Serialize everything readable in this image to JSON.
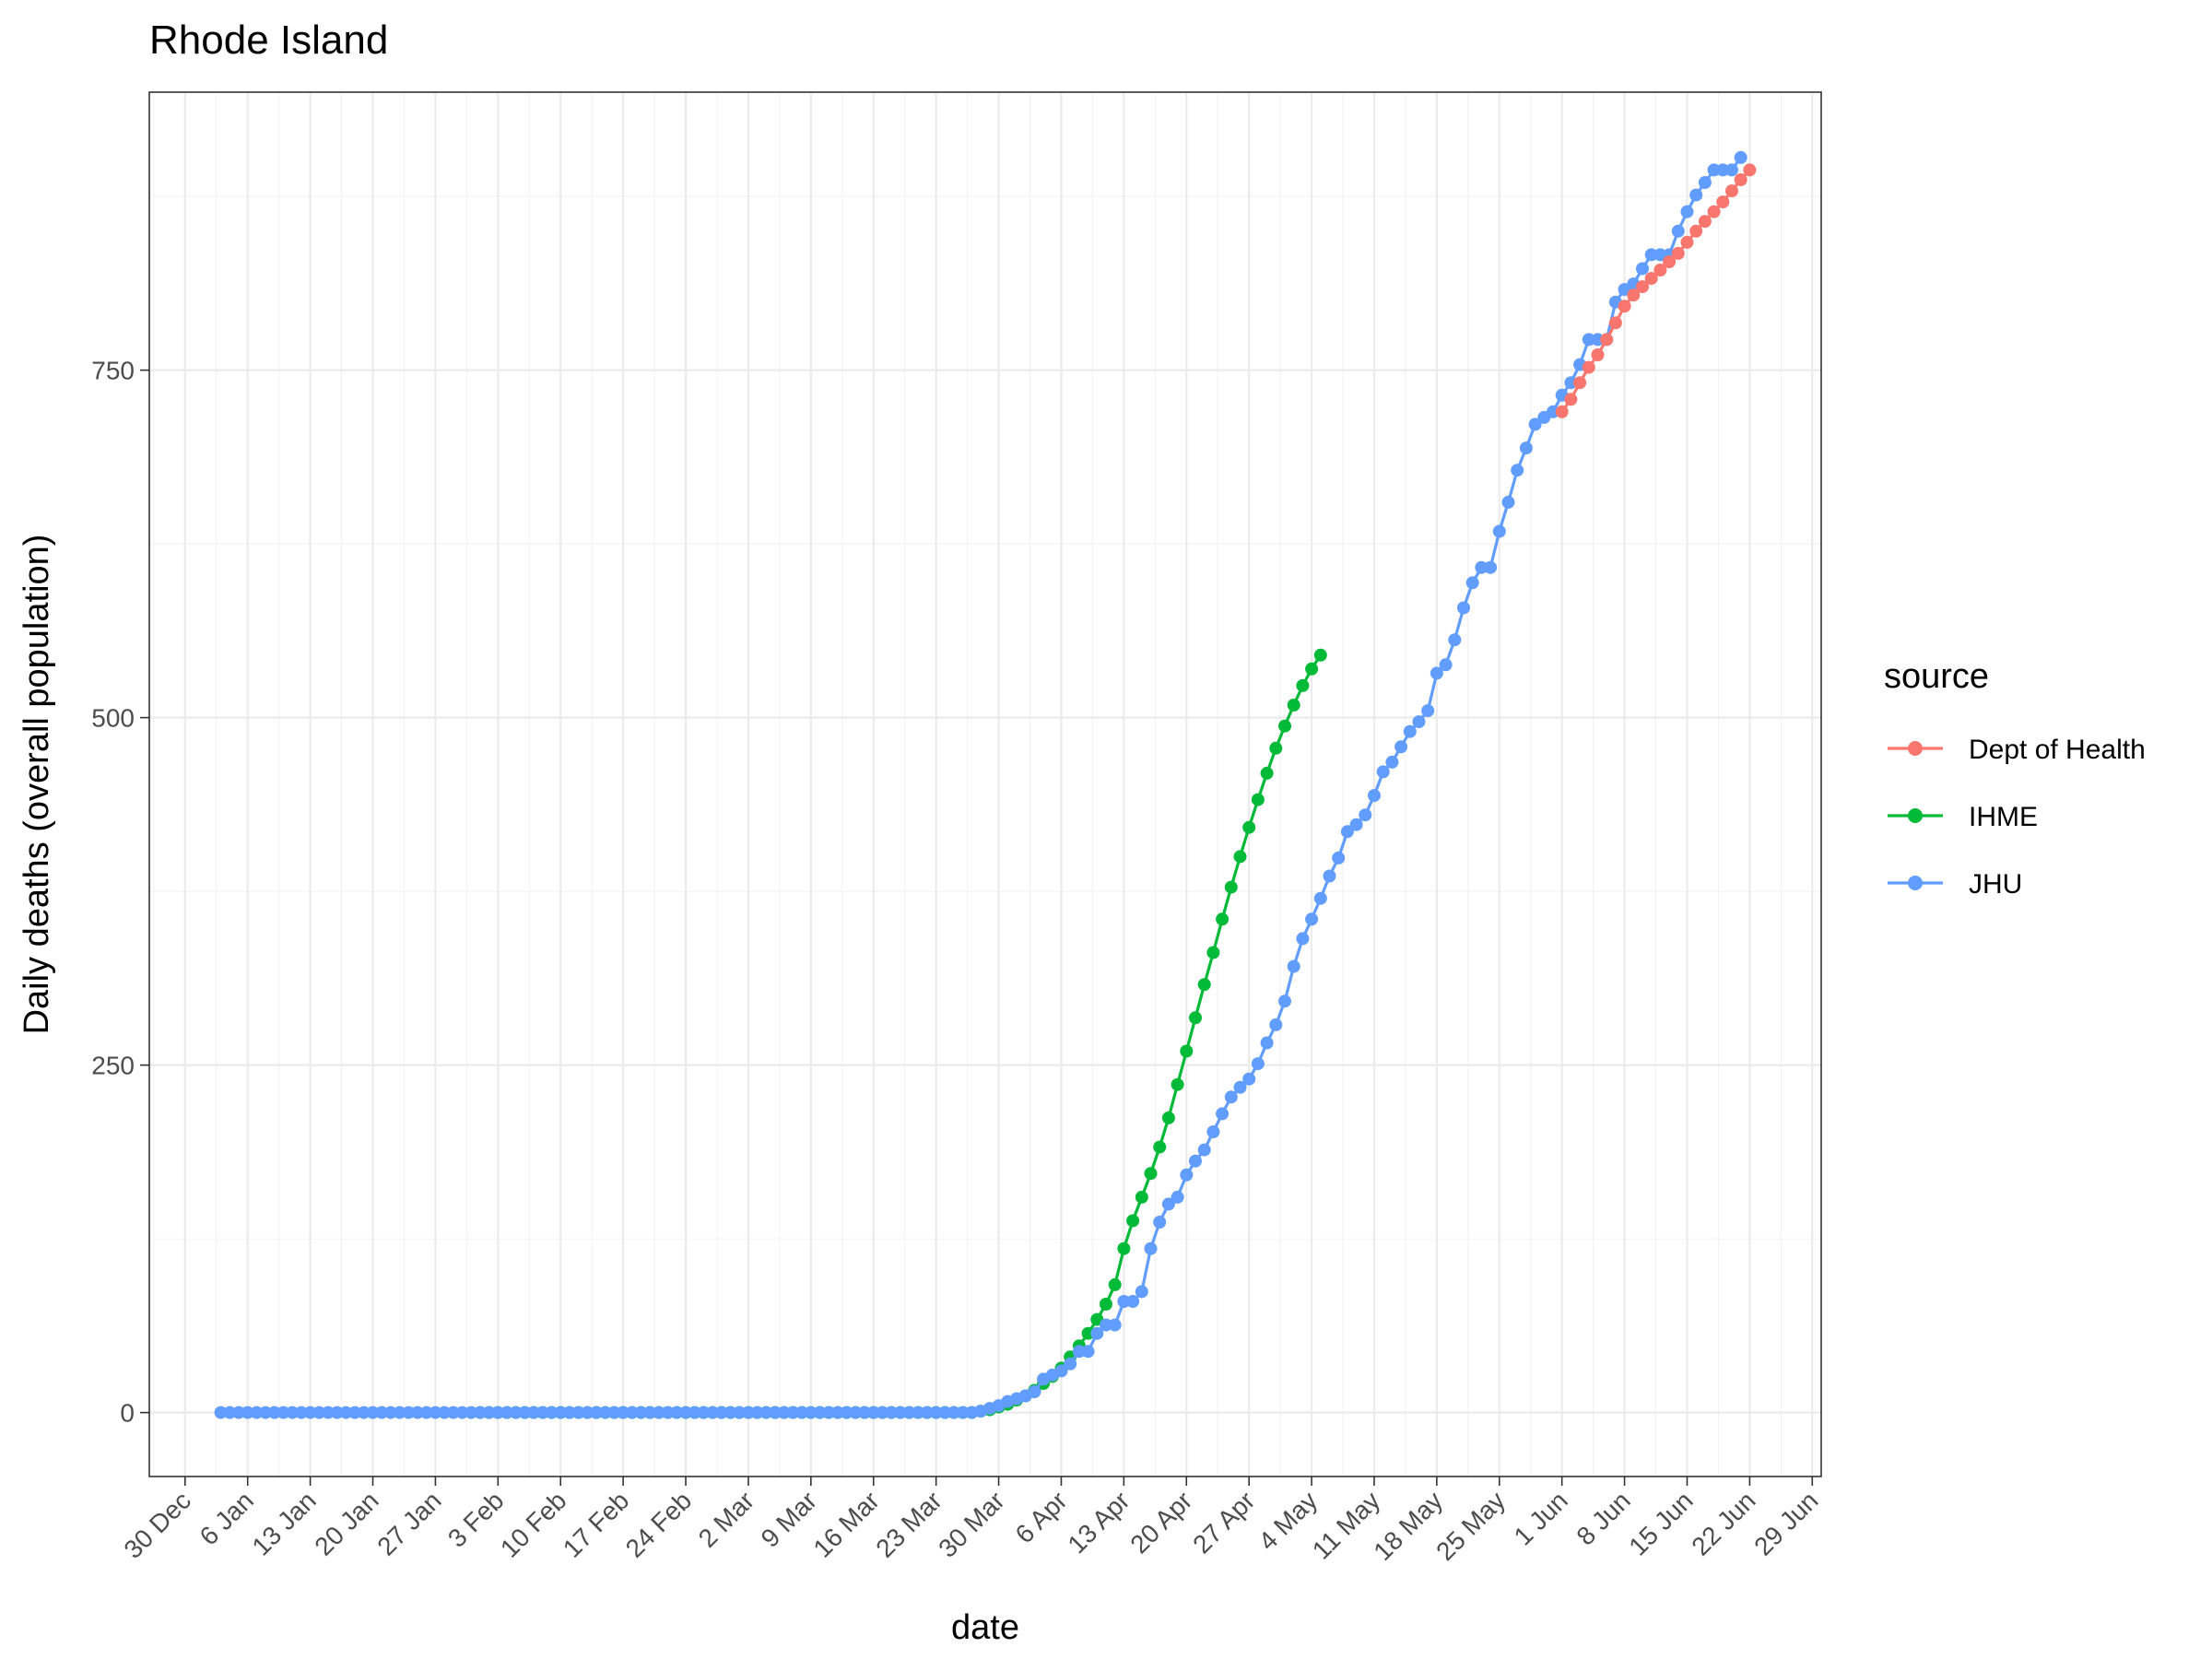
{
  "chart_data": {
    "type": "line",
    "title": "Rhode Island",
    "xlabel": "date",
    "ylabel": "Daily deaths (overall population)",
    "x_ticks": [
      "30 Dec",
      "6 Jan",
      "13 Jan",
      "20 Jan",
      "27 Jan",
      "3 Feb",
      "10 Feb",
      "17 Feb",
      "24 Feb",
      "2 Mar",
      "9 Mar",
      "16 Mar",
      "23 Mar",
      "30 Mar",
      "6 Apr",
      "13 Apr",
      "20 Apr",
      "27 Apr",
      "4 May",
      "11 May",
      "18 May",
      "25 May",
      "1 Jun",
      "8 Jun",
      "15 Jun",
      "22 Jun",
      "29 Jun"
    ],
    "y_ticks": [
      0,
      250,
      500,
      750
    ],
    "xlim": [
      "2019-12-26",
      "2020-06-30"
    ],
    "ylim": [
      -46,
      950
    ],
    "grid": true,
    "legend": {
      "title": "source",
      "placement": "right"
    },
    "series": [
      {
        "name": "Dept of Health",
        "color": "#F8766D",
        "start_date": "2020-06-01",
        "values": [
          720,
          729,
          741,
          752,
          761,
          772,
          784,
          796,
          804,
          810,
          816,
          822,
          828,
          834,
          842,
          850,
          857,
          864,
          871,
          879,
          887,
          894
        ]
      },
      {
        "name": "IHME",
        "color": "#00BA38",
        "start_date": "2020-02-01",
        "values": [
          0,
          0,
          0,
          0,
          0,
          0,
          0,
          0,
          0,
          0,
          0,
          0,
          0,
          0,
          0,
          0,
          0,
          0,
          0,
          0,
          0,
          0,
          0,
          0,
          0,
          0,
          0,
          0,
          0,
          0,
          0,
          0,
          0,
          0,
          0,
          0,
          0,
          0,
          0,
          0,
          0,
          0,
          0,
          0,
          0,
          0,
          0,
          0,
          0,
          0,
          0,
          0,
          0,
          0,
          0,
          0,
          1,
          2,
          4,
          6,
          9,
          12,
          16,
          21,
          26,
          32,
          40,
          48,
          57,
          67,
          78,
          92,
          118,
          138,
          155,
          172,
          191,
          212,
          236,
          260,
          284,
          308,
          331,
          355,
          378,
          400,
          421,
          441,
          460,
          478,
          494,
          509,
          523,
          535,
          545
        ]
      },
      {
        "name": "JHU",
        "color": "#619CFF",
        "start_date": "2020-01-03",
        "values": [
          0,
          0,
          0,
          0,
          0,
          0,
          0,
          0,
          0,
          0,
          0,
          0,
          0,
          0,
          0,
          0,
          0,
          0,
          0,
          0,
          0,
          0,
          0,
          0,
          0,
          0,
          0,
          0,
          0,
          0,
          0,
          0,
          0,
          0,
          0,
          0,
          0,
          0,
          0,
          0,
          0,
          0,
          0,
          0,
          0,
          0,
          0,
          0,
          0,
          0,
          0,
          0,
          0,
          0,
          0,
          0,
          0,
          0,
          0,
          0,
          0,
          0,
          0,
          0,
          0,
          0,
          0,
          0,
          0,
          0,
          0,
          0,
          0,
          0,
          0,
          0,
          0,
          0,
          0,
          0,
          0,
          0,
          0,
          0,
          0,
          1,
          3,
          5,
          8,
          10,
          12,
          15,
          24,
          27,
          30,
          35,
          44,
          44,
          57,
          63,
          63,
          80,
          80,
          87,
          118,
          137,
          150,
          155,
          171,
          181,
          189,
          202,
          215,
          227,
          234,
          240,
          251,
          266,
          279,
          296,
          321,
          341,
          355,
          370,
          386,
          399,
          418,
          423,
          430,
          444,
          461,
          468,
          479,
          490,
          497,
          505,
          532,
          538,
          556,
          579,
          597,
          608,
          608,
          634,
          655,
          678,
          694,
          711,
          716,
          720,
          732,
          741,
          754,
          772,
          772,
          772,
          799,
          808,
          812,
          823,
          833,
          833,
          833,
          850,
          864,
          876,
          885,
          894,
          894,
          894,
          903
        ]
      }
    ]
  }
}
